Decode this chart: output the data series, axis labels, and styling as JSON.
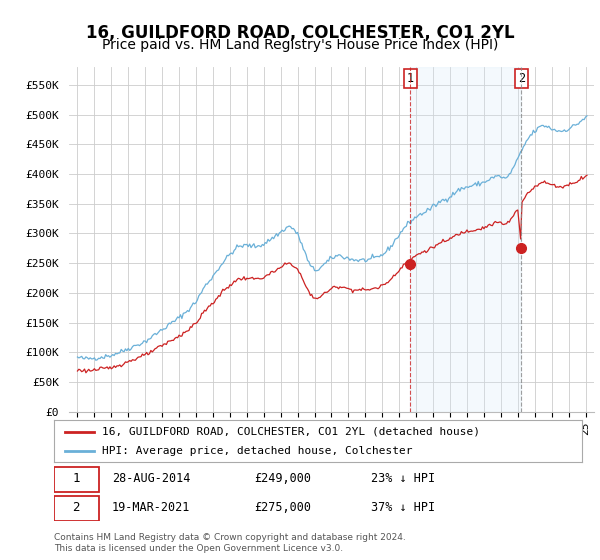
{
  "title": "16, GUILDFORD ROAD, COLCHESTER, CO1 2YL",
  "subtitle": "Price paid vs. HM Land Registry's House Price Index (HPI)",
  "title_fontsize": 12,
  "subtitle_fontsize": 10,
  "hpi_color": "#6ab0d8",
  "price_color": "#cc2222",
  "sale1_vline_color": "#cc2222",
  "sale2_vline_color": "#888888",
  "shade_color": "#d6eaf8",
  "background_color": "#ffffff",
  "grid_color": "#cccccc",
  "ylim": [
    0,
    580000
  ],
  "yticks": [
    0,
    50000,
    100000,
    150000,
    200000,
    250000,
    300000,
    350000,
    400000,
    450000,
    500000,
    550000
  ],
  "ytick_labels": [
    "£0",
    "£50K",
    "£100K",
    "£150K",
    "£200K",
    "£250K",
    "£300K",
    "£350K",
    "£400K",
    "£450K",
    "£500K",
    "£550K"
  ],
  "sale1": {
    "date": "28-AUG-2014",
    "year": 2014.65,
    "price": 249000,
    "label": "1",
    "hpi_pct": "23% ↓ HPI"
  },
  "sale2": {
    "date": "19-MAR-2021",
    "year": 2021.21,
    "price": 275000,
    "label": "2",
    "hpi_pct": "37% ↓ HPI"
  },
  "legend_line1": "16, GUILDFORD ROAD, COLCHESTER, CO1 2YL (detached house)",
  "legend_line2": "HPI: Average price, detached house, Colchester",
  "footnote": "Contains HM Land Registry data © Crown copyright and database right 2024.\nThis data is licensed under the Open Government Licence v3.0.",
  "xlim": [
    1994.5,
    2025.5
  ],
  "xtick_years": [
    1995,
    1996,
    1997,
    1998,
    1999,
    2000,
    2001,
    2002,
    2003,
    2004,
    2005,
    2006,
    2007,
    2008,
    2009,
    2010,
    2011,
    2012,
    2013,
    2014,
    2015,
    2016,
    2017,
    2018,
    2019,
    2020,
    2021,
    2022,
    2023,
    2024,
    2025
  ]
}
